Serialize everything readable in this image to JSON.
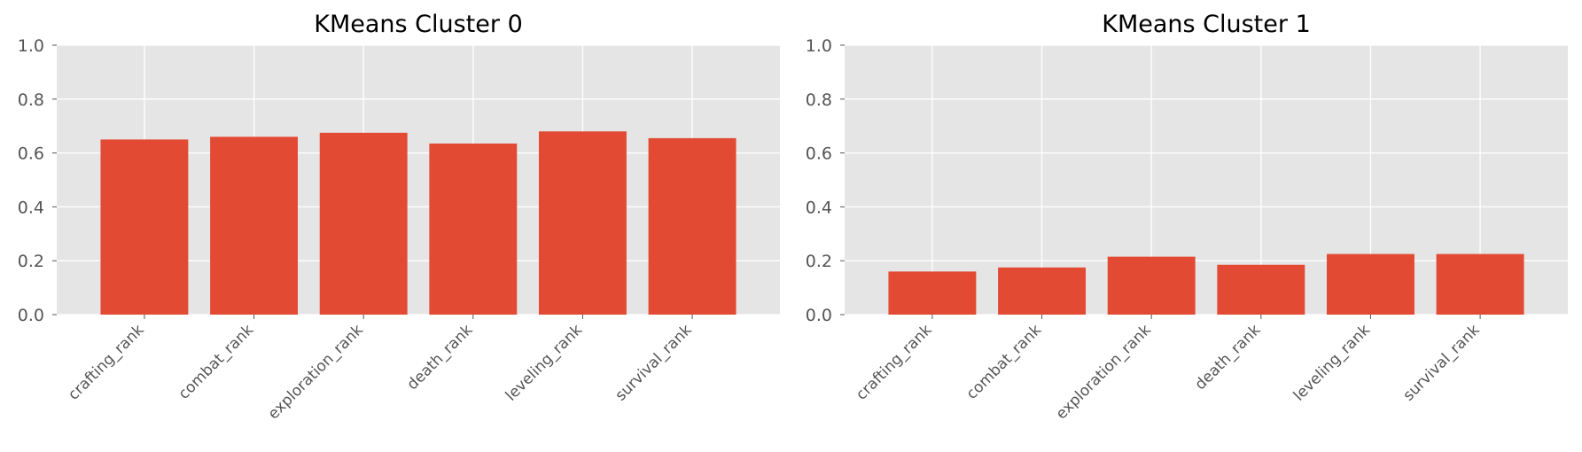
{
  "chart_data": [
    {
      "type": "bar",
      "title": "KMeans Cluster 0",
      "categories": [
        "crafting_rank",
        "combat_rank",
        "exploration_rank",
        "death_rank",
        "leveling_rank",
        "survival_rank"
      ],
      "values": [
        0.65,
        0.66,
        0.675,
        0.635,
        0.68,
        0.655
      ],
      "xlabel": "",
      "ylabel": "",
      "ylim": [
        0,
        1.0
      ],
      "yticks": [
        "0.0",
        "0.2",
        "0.4",
        "0.6",
        "0.8",
        "1.0"
      ],
      "grid": true,
      "bar_color": "#E24A33",
      "background_color": "#E5E5E5",
      "grid_color": "#FFFFFF"
    },
    {
      "type": "bar",
      "title": "KMeans Cluster 1",
      "categories": [
        "crafting_rank",
        "combat_rank",
        "exploration_rank",
        "death_rank",
        "leveling_rank",
        "survival_rank"
      ],
      "values": [
        0.16,
        0.175,
        0.215,
        0.185,
        0.225,
        0.225
      ],
      "xlabel": "",
      "ylabel": "",
      "ylim": [
        0,
        1.0
      ],
      "yticks": [
        "0.0",
        "0.2",
        "0.4",
        "0.6",
        "0.8",
        "1.0"
      ],
      "grid": true,
      "bar_color": "#E24A33",
      "background_color": "#E5E5E5",
      "grid_color": "#FFFFFF"
    }
  ]
}
